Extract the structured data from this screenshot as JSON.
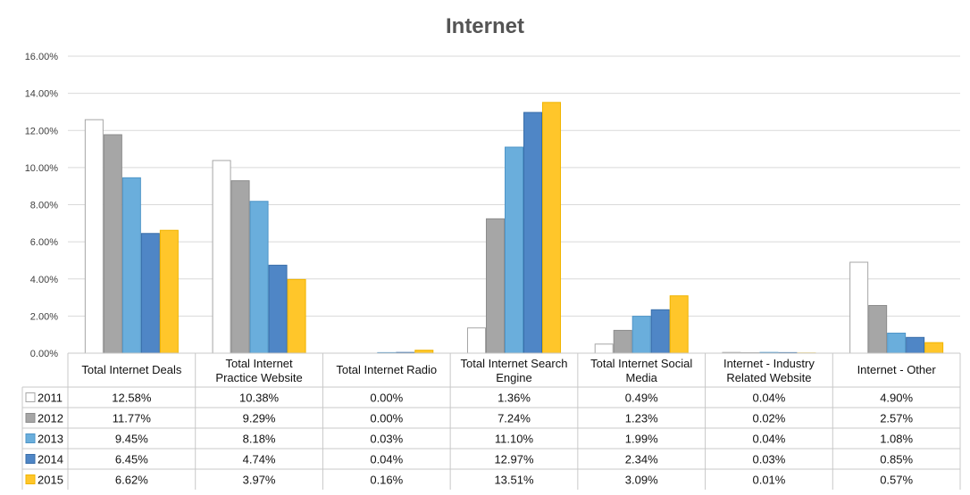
{
  "chart_data": {
    "type": "bar",
    "title": "Internet",
    "xlabel": "",
    "ylabel": "",
    "ylim": [
      0,
      0.16
    ],
    "yticks": [
      "0.00%",
      "2.00%",
      "4.00%",
      "6.00%",
      "8.00%",
      "10.00%",
      "12.00%",
      "14.00%",
      "16.00%"
    ],
    "grid": true,
    "legend": "data-table-left",
    "categories": [
      "Total Internet Deals",
      "Total Internet Practice Website",
      "Total Internet Radio",
      "Total Internet Search Engine",
      "Total Internet Social Media",
      "Internet - Industry Related Website",
      "Internet - Other"
    ],
    "category_lines": [
      [
        "Total Internet Deals"
      ],
      [
        "Total Internet",
        "Practice Website"
      ],
      [
        "Total Internet Radio"
      ],
      [
        "Total Internet Search",
        "Engine"
      ],
      [
        "Total Internet Social",
        "Media"
      ],
      [
        "Internet - Industry",
        "Related Website"
      ],
      [
        "Internet - Other"
      ]
    ],
    "series": [
      {
        "name": "2011",
        "color": "#ffffff",
        "stroke": "#a6a6a6",
        "values": [
          0.1258,
          0.1038,
          0.0,
          0.0136,
          0.0049,
          0.0004,
          0.049
        ],
        "labels": [
          "12.58%",
          "10.38%",
          "0.00%",
          "1.36%",
          "0.49%",
          "0.04%",
          "4.90%"
        ]
      },
      {
        "name": "2012",
        "color": "#a6a6a6",
        "stroke": "#8c8c8c",
        "values": [
          0.1177,
          0.0929,
          0.0,
          0.0724,
          0.0123,
          0.0002,
          0.0257
        ],
        "labels": [
          "11.77%",
          "9.29%",
          "0.00%",
          "7.24%",
          "1.23%",
          "0.02%",
          "2.57%"
        ]
      },
      {
        "name": "2013",
        "color": "#6aaedc",
        "stroke": "#4e95c8",
        "values": [
          0.0945,
          0.0818,
          0.0003,
          0.111,
          0.0199,
          0.0004,
          0.0108
        ],
        "labels": [
          "9.45%",
          "8.18%",
          "0.03%",
          "11.10%",
          "1.99%",
          "0.04%",
          "1.08%"
        ]
      },
      {
        "name": "2014",
        "color": "#4f86c6",
        "stroke": "#3a6faa",
        "values": [
          0.0645,
          0.0474,
          0.0004,
          0.1297,
          0.0234,
          0.0003,
          0.0085
        ],
        "labels": [
          "6.45%",
          "4.74%",
          "0.04%",
          "12.97%",
          "2.34%",
          "0.03%",
          "0.85%"
        ]
      },
      {
        "name": "2015",
        "color": "#ffc62a",
        "stroke": "#f0b400",
        "values": [
          0.0662,
          0.0397,
          0.0016,
          0.1351,
          0.0309,
          0.0001,
          0.0057
        ],
        "labels": [
          "6.62%",
          "3.97%",
          "0.16%",
          "13.51%",
          "3.09%",
          "0.01%",
          "0.57%"
        ]
      }
    ]
  }
}
